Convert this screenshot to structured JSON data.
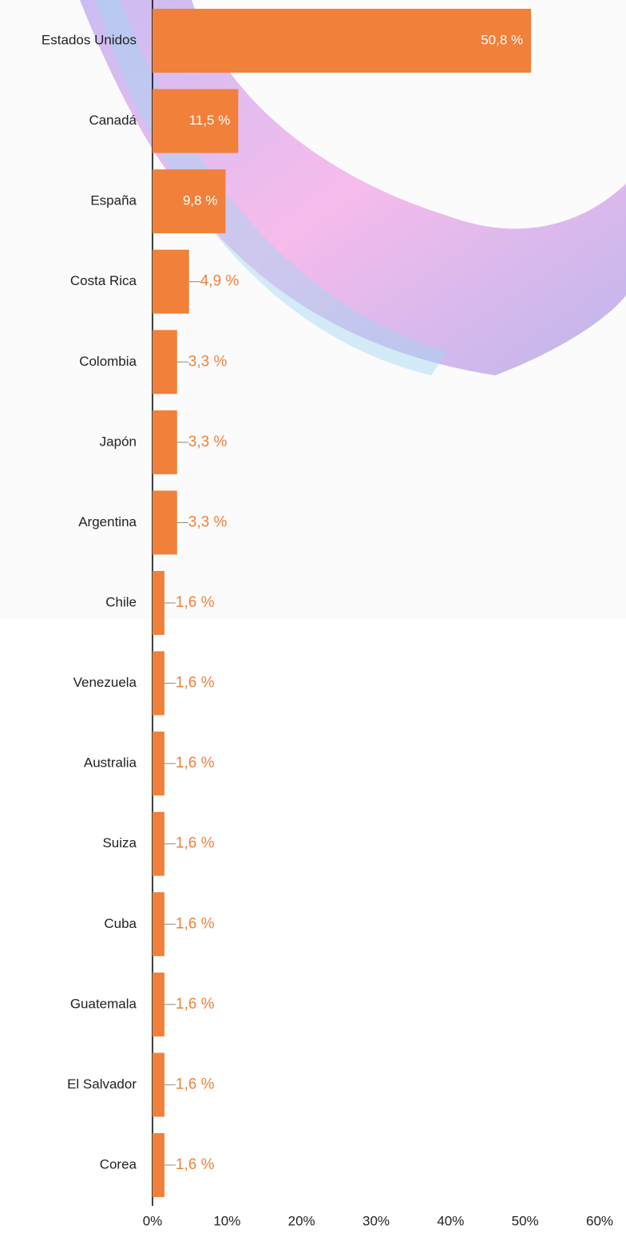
{
  "chart_data": {
    "type": "hbar",
    "categories": [
      "Estados Unidos",
      "Canadá",
      "España",
      "Costa Rica",
      "Colombia",
      "Japón",
      "Argentina",
      "Chile",
      "Venezuela",
      "Australia",
      "Suiza",
      "Cuba",
      "Guatemala",
      "El Salvador",
      "Corea"
    ],
    "values": [
      50.8,
      11.5,
      9.8,
      4.9,
      3.3,
      3.3,
      3.3,
      1.6,
      1.6,
      1.6,
      1.6,
      1.6,
      1.6,
      1.6,
      1.6
    ],
    "value_labels": [
      "50,8 %",
      "11,5 %",
      "9,8 %",
      "4,9 %",
      "3,3 %",
      "3,3 %",
      "3,3 %",
      "1,6 %",
      "1,6 %",
      "1,6 %",
      "1,6 %",
      "1,6 %",
      "1,6 %",
      "1,6 %",
      "1,6 %"
    ],
    "color": "#f0803a",
    "xlim": [
      0,
      60
    ],
    "xticks": [
      {
        "value": 0,
        "label": "0%"
      },
      {
        "value": 10,
        "label": "10%"
      },
      {
        "value": 20,
        "label": "20%"
      },
      {
        "value": 30,
        "label": "30%"
      },
      {
        "value": 40,
        "label": "40%"
      },
      {
        "value": 50,
        "label": "50%"
      },
      {
        "value": 60,
        "label": "60%"
      }
    ]
  }
}
